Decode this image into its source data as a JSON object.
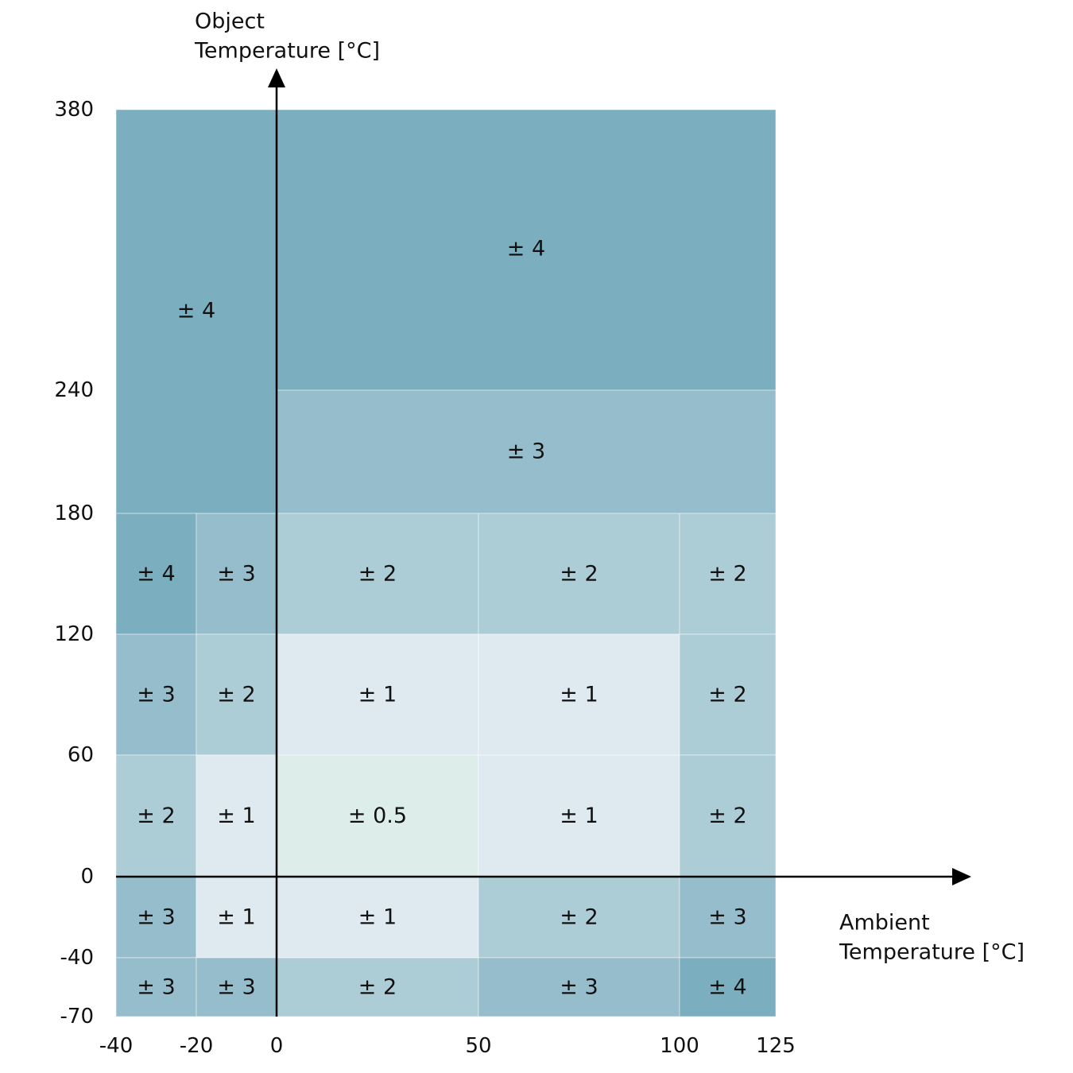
{
  "chart_data": {
    "type": "heatmap",
    "title": "",
    "xlabel_lines": [
      "Ambient",
      "Temperature [°C]"
    ],
    "ylabel_lines": [
      "Object",
      "Temperature [°C]"
    ],
    "x_edges": [
      -40,
      -20,
      0,
      50,
      100,
      125
    ],
    "y_edges": [
      -70,
      -40,
      0,
      60,
      120,
      180,
      240,
      380
    ],
    "x_tick_labels": [
      "-40",
      "-20",
      "0",
      "50",
      "100",
      "125"
    ],
    "y_tick_labels": [
      "-70",
      "-40",
      "0",
      "60",
      "120",
      "180",
      "240",
      "380"
    ],
    "grid": false,
    "level_colors": {
      "0.5": "#ddeeea",
      "1": "#deeaf0",
      "2": "#adcdd6",
      "3": "#96bdcb",
      "4": "#7bafbf"
    },
    "regions": [
      {
        "x": [
          -40,
          0
        ],
        "y": [
          180,
          380
        ],
        "value": 4,
        "label": "± 4"
      },
      {
        "x": [
          0,
          125
        ],
        "y": [
          240,
          380
        ],
        "value": 4,
        "label": "± 4"
      },
      {
        "x": [
          0,
          125
        ],
        "y": [
          180,
          240
        ],
        "value": 3,
        "label": "± 3"
      },
      {
        "x": [
          -40,
          -20
        ],
        "y": [
          120,
          180
        ],
        "value": 4,
        "label": "± 4"
      },
      {
        "x": [
          -20,
          0
        ],
        "y": [
          120,
          180
        ],
        "value": 3,
        "label": "± 3"
      },
      {
        "x": [
          0,
          50
        ],
        "y": [
          120,
          180
        ],
        "value": 2,
        "label": "± 2"
      },
      {
        "x": [
          50,
          100
        ],
        "y": [
          120,
          180
        ],
        "value": 2,
        "label": "± 2"
      },
      {
        "x": [
          100,
          125
        ],
        "y": [
          120,
          180
        ],
        "value": 2,
        "label": "± 2"
      },
      {
        "x": [
          -40,
          -20
        ],
        "y": [
          60,
          120
        ],
        "value": 3,
        "label": "± 3"
      },
      {
        "x": [
          -20,
          0
        ],
        "y": [
          60,
          120
        ],
        "value": 2,
        "label": "± 2"
      },
      {
        "x": [
          0,
          50
        ],
        "y": [
          60,
          120
        ],
        "value": 1,
        "label": "± 1"
      },
      {
        "x": [
          50,
          100
        ],
        "y": [
          60,
          120
        ],
        "value": 1,
        "label": "± 1"
      },
      {
        "x": [
          100,
          125
        ],
        "y": [
          60,
          120
        ],
        "value": 2,
        "label": "± 2"
      },
      {
        "x": [
          -40,
          -20
        ],
        "y": [
          0,
          60
        ],
        "value": 2,
        "label": "± 2"
      },
      {
        "x": [
          -20,
          0
        ],
        "y": [
          0,
          60
        ],
        "value": 1,
        "label": "± 1"
      },
      {
        "x": [
          0,
          50
        ],
        "y": [
          0,
          60
        ],
        "value": 0.5,
        "label": "± 0.5"
      },
      {
        "x": [
          50,
          100
        ],
        "y": [
          0,
          60
        ],
        "value": 1,
        "label": "± 1"
      },
      {
        "x": [
          100,
          125
        ],
        "y": [
          0,
          60
        ],
        "value": 2,
        "label": "± 2"
      },
      {
        "x": [
          -40,
          -20
        ],
        "y": [
          -40,
          0
        ],
        "value": 3,
        "label": "± 3"
      },
      {
        "x": [
          -20,
          0
        ],
        "y": [
          -40,
          0
        ],
        "value": 1,
        "label": "± 1"
      },
      {
        "x": [
          0,
          50
        ],
        "y": [
          -40,
          0
        ],
        "value": 1,
        "label": "± 1"
      },
      {
        "x": [
          50,
          100
        ],
        "y": [
          -40,
          0
        ],
        "value": 2,
        "label": "± 2"
      },
      {
        "x": [
          100,
          125
        ],
        "y": [
          -40,
          0
        ],
        "value": 3,
        "label": "± 3"
      },
      {
        "x": [
          -40,
          -20
        ],
        "y": [
          -70,
          -40
        ],
        "value": 3,
        "label": "± 3"
      },
      {
        "x": [
          -20,
          0
        ],
        "y": [
          -70,
          -40
        ],
        "value": 3,
        "label": "± 3"
      },
      {
        "x": [
          0,
          50
        ],
        "y": [
          -70,
          -40
        ],
        "value": 2,
        "label": "± 2"
      },
      {
        "x": [
          50,
          100
        ],
        "y": [
          -70,
          -40
        ],
        "value": 3,
        "label": "± 3"
      },
      {
        "x": [
          100,
          125
        ],
        "y": [
          -70,
          -40
        ],
        "value": 4,
        "label": "± 4"
      }
    ]
  }
}
